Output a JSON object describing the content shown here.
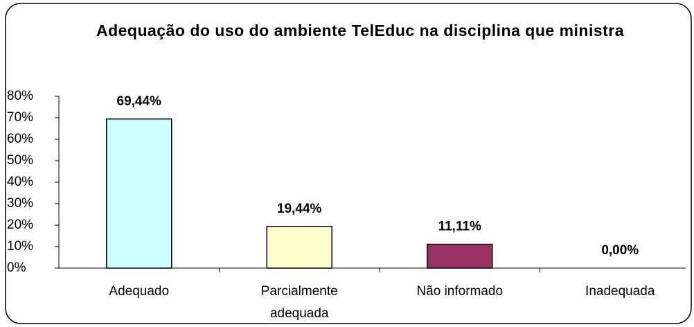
{
  "chart_data": {
    "type": "bar",
    "title": "Adequação do uso do ambiente TelEduc na disciplina que ministra",
    "categories": [
      "Adequado",
      "Parcialmente adequada",
      "Não informado",
      "Inadequada"
    ],
    "values": [
      69.44,
      19.44,
      11.11,
      0
    ],
    "value_labels": [
      "69,44%",
      "19,44%",
      "11,11%",
      "0,00%"
    ],
    "colors": [
      "#ccffff",
      "#ffffcc",
      "#993366",
      "#ccccff"
    ],
    "ylim": [
      0,
      80
    ],
    "yticks": [
      {
        "value": 0,
        "label": "0%"
      },
      {
        "value": 10,
        "label": "10%"
      },
      {
        "value": 20,
        "label": "20%"
      },
      {
        "value": 30,
        "label": "30%"
      },
      {
        "value": 40,
        "label": "40%"
      },
      {
        "value": 50,
        "label": "50%"
      },
      {
        "value": 60,
        "label": "60%"
      },
      {
        "value": 70,
        "label": "70%"
      },
      {
        "value": 80,
        "label": "80%"
      }
    ],
    "grid": false
  }
}
